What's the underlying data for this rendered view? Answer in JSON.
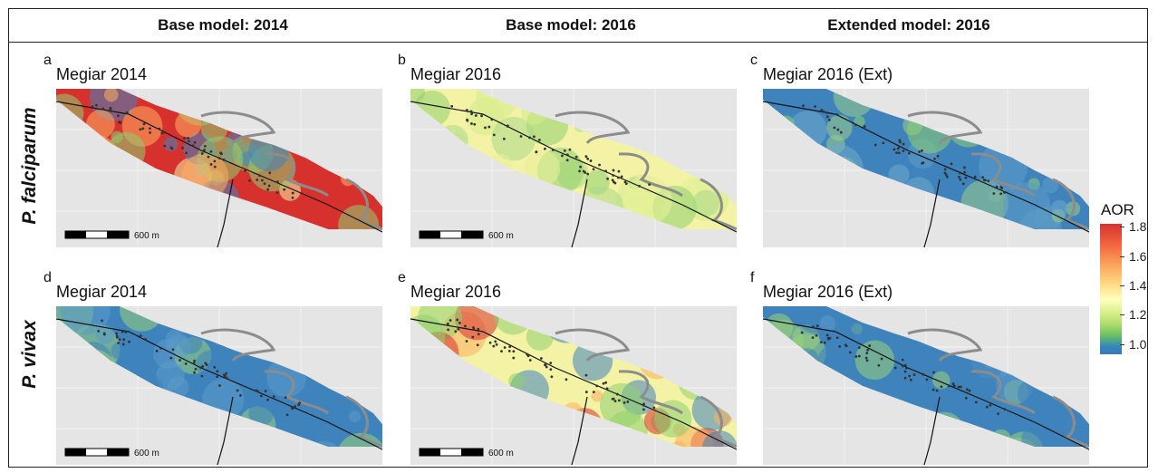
{
  "columns": [
    "Base model: 2014",
    "Base model: 2016",
    "Extended model: 2016"
  ],
  "rows": [
    "P. falciparum",
    "P. vivax"
  ],
  "panels": [
    {
      "letter": "a",
      "title": "Megiar 2014",
      "scale": "600 m",
      "scheme": "hot"
    },
    {
      "letter": "b",
      "title": "Megiar 2016",
      "scale": "600 m",
      "scheme": "yellow"
    },
    {
      "letter": "c",
      "title": "Megiar 2016 (Ext)",
      "scale": "",
      "scheme": "greenblue"
    },
    {
      "letter": "d",
      "title": "Megiar 2014",
      "scale": "600 m",
      "scheme": "blue"
    },
    {
      "letter": "e",
      "title": "Megiar 2016",
      "scale": "600 m",
      "scheme": "mixed"
    },
    {
      "letter": "f",
      "title": "Megiar 2016 (Ext)",
      "scale": "",
      "scheme": "blue"
    }
  ],
  "legend": {
    "title": "AOR",
    "ticks": [
      "1.8",
      "1.6",
      "1.4",
      "1.2",
      "1.0"
    ],
    "tick_values": [
      1.8,
      1.6,
      1.4,
      1.2,
      1.0
    ],
    "range": [
      0.93,
      1.82
    ]
  },
  "colors": {
    "blue": "#3f83bd",
    "green": "#8fcf6f",
    "yellow": "#f4f2a4",
    "orange": "#fdae61",
    "red": "#d7312e",
    "background": "#e5e5e5",
    "river": "#8c8c8c"
  }
}
